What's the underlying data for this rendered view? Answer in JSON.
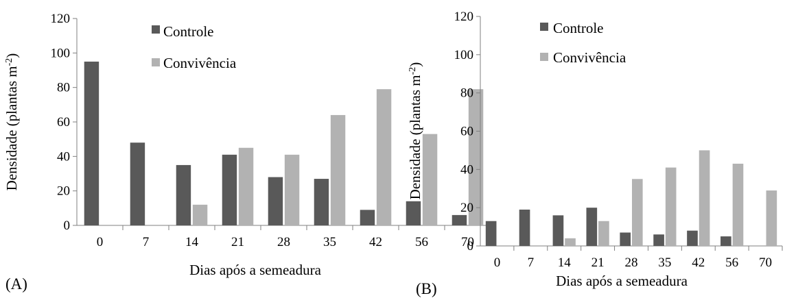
{
  "colors": {
    "controle": "#595959",
    "convivencia": "#b2b2b2",
    "axis": "#7f7f7f"
  },
  "chart_data": [
    {
      "type": "bar",
      "panel_label": "(A)",
      "categories": [
        "0",
        "7",
        "14",
        "21",
        "28",
        "35",
        "42",
        "56",
        "70"
      ],
      "series": [
        {
          "name": "Controle",
          "values": [
            95,
            48,
            35,
            41,
            28,
            27,
            9,
            14,
            6
          ]
        },
        {
          "name": "Convivência",
          "values": [
            0,
            0,
            12,
            45,
            41,
            64,
            79,
            53,
            79
          ]
        }
      ],
      "xlabel": "Dias após a semeadura",
      "ylabel_main": "Densidade (plantas m",
      "ylabel_sup": "-2",
      "ylabel_close": ")",
      "ylim": [
        0,
        120
      ],
      "yticks": [
        "0",
        "20",
        "40",
        "60",
        "80",
        "100",
        "120"
      ],
      "grid": false,
      "legend": "top-center"
    },
    {
      "type": "bar",
      "panel_label": "(B)",
      "categories": [
        "0",
        "7",
        "14",
        "21",
        "28",
        "35",
        "42",
        "56",
        "70"
      ],
      "series": [
        {
          "name": "Controle",
          "values": [
            13,
            19,
            16,
            20,
            7,
            6,
            8,
            5,
            0
          ]
        },
        {
          "name": "Convivência",
          "values": [
            0,
            0,
            4,
            13,
            35,
            41,
            50,
            43,
            29
          ]
        }
      ],
      "xlabel": "Dias após a semeadura",
      "ylabel_main": "Densidade (plantas m",
      "ylabel_sup": "-2",
      "ylabel_close": ")",
      "ylim": [
        0,
        120
      ],
      "yticks": [
        "0",
        "20",
        "40",
        "60",
        "80",
        "100",
        "120"
      ],
      "grid": false,
      "legend": "top-left"
    }
  ]
}
